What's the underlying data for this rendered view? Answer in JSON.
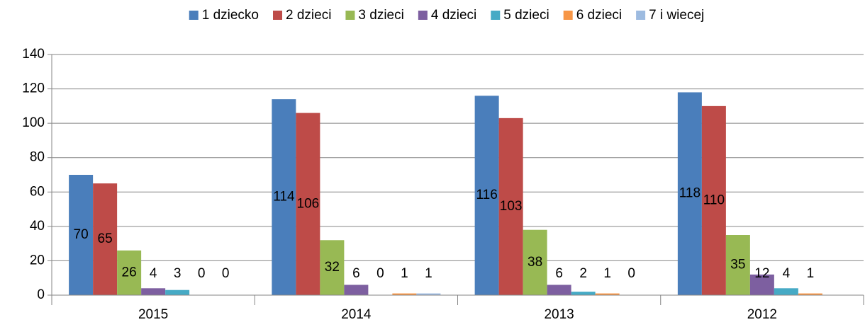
{
  "chart_data": {
    "type": "bar",
    "categories": [
      "2015",
      "2014",
      "2013",
      "2012"
    ],
    "series": [
      {
        "name": "1 dziecko",
        "color": "#4a7ebb",
        "values": [
          70,
          114,
          116,
          118
        ]
      },
      {
        "name": "2 dzieci",
        "color": "#be4b48",
        "values": [
          65,
          106,
          103,
          110
        ]
      },
      {
        "name": "3 dzieci",
        "color": "#98b954",
        "values": [
          26,
          32,
          38,
          35
        ]
      },
      {
        "name": "4 dzieci",
        "color": "#7d5fa0",
        "values": [
          4,
          6,
          6,
          12
        ]
      },
      {
        "name": "5 dzieci",
        "color": "#46aac5",
        "values": [
          3,
          0,
          2,
          4
        ]
      },
      {
        "name": "6 dzieci",
        "color": "#f79646",
        "values": [
          0,
          1,
          1,
          1
        ]
      },
      {
        "name": "7 i wiecej",
        "color": "#9dbbe0",
        "values": [
          0,
          1,
          0,
          null
        ]
      }
    ],
    "ylim": [
      0,
      140
    ],
    "yticks": [
      0,
      20,
      40,
      60,
      80,
      100,
      120,
      140
    ],
    "grid": true,
    "legend": "top",
    "data_labels": true
  }
}
